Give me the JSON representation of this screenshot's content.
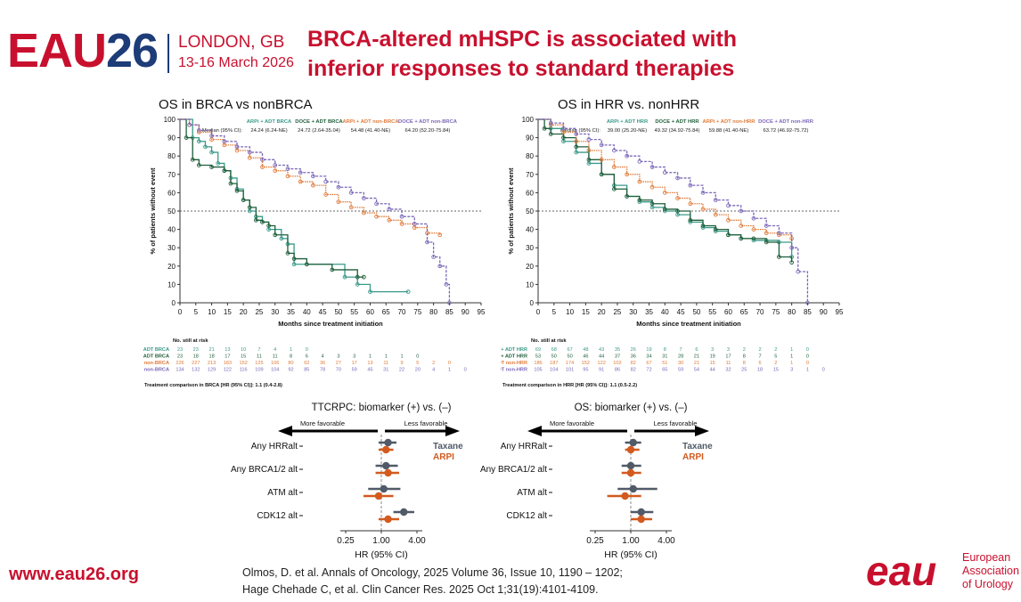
{
  "header": {
    "logo_eau": "EAU",
    "logo_num": "26",
    "city": "LONDON, GB",
    "dates": "13-16 March 2026",
    "title_line1": "BRCA-altered mHSPC is associated with",
    "title_line2": "inferior responses to standard therapies"
  },
  "colors": {
    "accent_red": "#c8102e",
    "navy": "#1d3c78",
    "arpi_brca": "#3a9a8a",
    "doce_brca": "#1f5e3a",
    "arpi_non": "#e07b39",
    "doce_non": "#7b68b8",
    "taxane": "#505a68",
    "arpi": "#d35a1e"
  },
  "chart_data": [
    {
      "type": "line",
      "title": "OS in BRCA vs nonBRCA",
      "xlabel": "Months since treatment initiation",
      "ylabel": "% of patients without event",
      "xlim": [
        0,
        95
      ],
      "ylim": [
        0,
        100
      ],
      "xticks": [
        "0",
        "5",
        "10",
        "15",
        "20",
        "25",
        "30",
        "35",
        "40",
        "45",
        "50",
        "55",
        "60",
        "65",
        "70",
        "75",
        "80",
        "85",
        "90",
        "95"
      ],
      "yticks": [
        "0",
        "10",
        "20",
        "30",
        "40",
        "50",
        "60",
        "70",
        "80",
        "90",
        "100"
      ],
      "reference_line_y": 50,
      "median_label": "Median (95% CI):",
      "series": [
        {
          "name": "ARPi + ADT BRCA",
          "median": "24.24 (6.24-NE)",
          "color_key": "arpi_brca",
          "x": [
            0,
            4,
            6,
            8,
            10,
            12,
            14,
            16,
            18,
            20,
            22,
            24,
            26,
            28,
            32,
            34,
            36,
            40,
            52,
            56,
            60,
            72
          ],
          "y": [
            100,
            90,
            88,
            85,
            82,
            76,
            72,
            68,
            62,
            56,
            50,
            47,
            44,
            40,
            35,
            32,
            21,
            21,
            14,
            10,
            6,
            6
          ]
        },
        {
          "name": "DOCE + ADT BRCA",
          "median": "24.72 (2.64-35.04)",
          "color_key": "doce_brca",
          "x": [
            0,
            2,
            4,
            6,
            10,
            14,
            16,
            18,
            20,
            22,
            24,
            26,
            28,
            30,
            34,
            36,
            40,
            48,
            56,
            58
          ],
          "y": [
            100,
            90,
            78,
            75,
            74,
            72,
            65,
            61,
            56,
            52,
            45,
            44,
            42,
            37,
            27,
            24,
            21,
            18,
            14,
            14
          ]
        },
        {
          "name": "ARPi + ADT non-BRCA",
          "median": "54.48 (41.40-NE)",
          "color_key": "arpi_non",
          "x": [
            0,
            3,
            6,
            10,
            14,
            18,
            22,
            26,
            30,
            34,
            38,
            42,
            46,
            50,
            54,
            58,
            62,
            66,
            70,
            74,
            78,
            82
          ],
          "y": [
            100,
            97,
            93,
            89,
            86,
            83,
            79,
            74,
            72,
            69,
            66,
            64,
            59,
            55,
            52,
            49,
            47,
            45,
            43,
            41,
            38,
            37
          ]
        },
        {
          "name": "DOCE + ADT non-BRCA",
          "median": "64.20 (52.20-75.84)",
          "color_key": "doce_non",
          "x": [
            0,
            3,
            6,
            10,
            14,
            18,
            22,
            26,
            30,
            34,
            38,
            42,
            46,
            50,
            54,
            58,
            62,
            66,
            70,
            74,
            78,
            80,
            82,
            84,
            85
          ],
          "y": [
            100,
            97,
            94,
            91,
            88,
            85,
            82,
            78,
            75,
            73,
            71,
            69,
            66,
            63,
            60,
            57,
            54,
            51,
            47,
            43,
            33,
            25,
            20,
            10,
            0
          ]
        }
      ],
      "risk_table": {
        "header": "No. still at risk",
        "rows": [
          {
            "label": "ARPi + ADT BRCA",
            "color_key": "arpi_brca",
            "values": [
              "23",
              "23",
              "21",
              "13",
              "10",
              "7",
              "4",
              "1",
              "0"
            ]
          },
          {
            "label": "DOCE + ADT BRCA",
            "color_key": "doce_brca",
            "values": [
              "23",
              "18",
              "18",
              "17",
              "15",
              "11",
              "11",
              "8",
              "6",
              "4",
              "3",
              "3",
              "1",
              "1",
              "1",
              "0"
            ]
          },
          {
            "label": "ARPi + ADT non-BRCA",
            "color_key": "arpi_non",
            "values": [
              "226",
              "227",
              "213",
              "183",
              "152",
              "125",
              "106",
              "80",
              "62",
              "36",
              "27",
              "17",
              "13",
              "11",
              "9",
              "5",
              "2",
              "0"
            ]
          },
          {
            "label": "DOCE + ADT non-BRCA",
            "color_key": "doce_non",
            "values": [
              "134",
              "132",
              "129",
              "122",
              "116",
              "109",
              "104",
              "92",
              "85",
              "78",
              "70",
              "59",
              "45",
              "31",
              "22",
              "20",
              "4",
              "1",
              "0"
            ]
          }
        ],
        "notes": [
          "Treatment comparison in BRCA [HR (95% CI)]: 1.1 (0.4-2.8)",
          "Treatment comparison in non-BRCA [HR (95% CI)]: 1.1 (0.7-1.7)"
        ]
      }
    },
    {
      "type": "line",
      "title": "OS in HRR vs. nonHRR",
      "xlabel": "Months since treatment initiation",
      "ylabel": "% of patients without event",
      "xlim": [
        0,
        95
      ],
      "ylim": [
        0,
        100
      ],
      "xticks": [
        "0",
        "5",
        "10",
        "15",
        "20",
        "25",
        "30",
        "35",
        "40",
        "45",
        "50",
        "55",
        "60",
        "65",
        "70",
        "75",
        "80",
        "85",
        "90",
        "95"
      ],
      "yticks": [
        "0",
        "10",
        "20",
        "30",
        "40",
        "50",
        "60",
        "70",
        "80",
        "90",
        "100"
      ],
      "reference_line_y": 50,
      "median_label": "Median (95% CI):",
      "series": [
        {
          "name": "ARPi + ADT HRR",
          "median": "39.00 (25.20-NE)",
          "color_key": "arpi_brca",
          "x": [
            0,
            4,
            8,
            12,
            16,
            20,
            24,
            28,
            32,
            36,
            40,
            44,
            48,
            52,
            56,
            60,
            64,
            68,
            72,
            76,
            80
          ],
          "y": [
            100,
            95,
            88,
            82,
            76,
            70,
            64,
            58,
            55,
            52,
            50,
            48,
            44,
            41,
            39,
            37,
            35,
            34,
            34,
            33,
            25
          ]
        },
        {
          "name": "DOCE + ADT HRR",
          "median": "49.32 (34.92-75.84)",
          "color_key": "doce_brca",
          "x": [
            0,
            2,
            4,
            8,
            12,
            16,
            20,
            24,
            28,
            32,
            36,
            40,
            44,
            48,
            52,
            56,
            60,
            64,
            68,
            72,
            76,
            80
          ],
          "y": [
            100,
            95,
            92,
            90,
            85,
            78,
            70,
            62,
            58,
            56,
            54,
            51,
            50,
            45,
            42,
            40,
            37,
            35,
            35,
            33,
            25,
            22
          ]
        },
        {
          "name": "ARPi + ADT non-HRR",
          "median": "59.88 (41.40-NE)",
          "color_key": "arpi_non",
          "x": [
            0,
            4,
            8,
            12,
            16,
            20,
            24,
            28,
            32,
            36,
            40,
            44,
            48,
            52,
            56,
            60,
            64,
            68,
            72,
            76,
            80
          ],
          "y": [
            100,
            97,
            93,
            88,
            83,
            78,
            74,
            70,
            66,
            63,
            60,
            57,
            54,
            51,
            48,
            45,
            42,
            40,
            38,
            37,
            35
          ]
        },
        {
          "name": "DOCE + ADT non-HRR",
          "median": "63.72 (46.92-75.72)",
          "color_key": "doce_non",
          "x": [
            0,
            4,
            8,
            12,
            16,
            20,
            24,
            28,
            32,
            36,
            40,
            44,
            48,
            52,
            56,
            60,
            64,
            68,
            72,
            76,
            80,
            82,
            85
          ],
          "y": [
            100,
            98,
            95,
            92,
            89,
            86,
            83,
            80,
            77,
            74,
            71,
            68,
            64,
            60,
            56,
            53,
            50,
            46,
            42,
            38,
            30,
            17,
            0
          ]
        }
      ],
      "risk_table": {
        "header": "No. still at risk",
        "rows": [
          {
            "label": "ARPi + ADT HRR",
            "color_key": "arpi_brca",
            "values": [
              "69",
              "68",
              "67",
              "48",
              "43",
              "35",
              "26",
              "19",
              "8",
              "7",
              "6",
              "3",
              "3",
              "2",
              "2",
              "2",
              "1",
              "0"
            ]
          },
          {
            "label": "DOCE + ADT HRR",
            "color_key": "doce_brca",
            "values": [
              "53",
              "50",
              "50",
              "46",
              "44",
              "37",
              "36",
              "34",
              "31",
              "28",
              "21",
              "19",
              "17",
              "8",
              "7",
              "5",
              "1",
              "0"
            ]
          },
          {
            "label": "ARPi + ADT non-HRR",
            "color_key": "arpi_non",
            "values": [
              "186",
              "187",
              "174",
              "152",
              "122",
              "102",
              "82",
              "67",
              "51",
              "30",
              "21",
              "15",
              "11",
              "8",
              "6",
              "2",
              "1",
              "0"
            ]
          },
          {
            "label": "DOCE + ADT non-HRR",
            "color_key": "doce_non",
            "values": [
              "105",
              "104",
              "101",
              "95",
              "91",
              "86",
              "82",
              "72",
              "65",
              "59",
              "54",
              "44",
              "32",
              "25",
              "18",
              "15",
              "3",
              "1",
              "0"
            ]
          }
        ],
        "notes": [
          "Treatment comparison in HRR [HR (95% CI)]: 1.1 (0.5-2.2)",
          "Treatment comparison in non-HRR [HR (95% CI)]: 1.1 (0.7-1.6)"
        ]
      }
    },
    {
      "type": "scatter",
      "subtype": "forest",
      "title": "TTCRPC: biomarker (+) vs. (–)",
      "xlabel": "HR (95% CI)",
      "x_scale": "log",
      "xticks": [
        "0.25",
        "1.00",
        "4.00"
      ],
      "arrow_left": "More favorable",
      "arrow_right": "Less favorable",
      "categories": [
        "Any HRRalt",
        "Any BRCA1/2 alt",
        "ATM alt",
        "CDK12 alt"
      ],
      "series": [
        {
          "name": "Taxane",
          "color_key": "taxane",
          "hr": [
            1.3,
            1.2,
            1.1,
            2.4
          ],
          "lo": [
            0.9,
            0.8,
            0.6,
            1.6
          ],
          "hi": [
            1.8,
            1.9,
            2.1,
            3.6
          ]
        },
        {
          "name": "ARPI",
          "color_key": "arpi",
          "hr": [
            1.2,
            1.3,
            0.9,
            1.3
          ],
          "lo": [
            0.9,
            0.8,
            0.5,
            0.9
          ],
          "hi": [
            1.6,
            2.0,
            1.6,
            2.0
          ]
        }
      ]
    },
    {
      "type": "scatter",
      "subtype": "forest",
      "title": "OS: biomarker (+) vs. (–)",
      "xlabel": "HR (95% CI)",
      "x_scale": "log",
      "xticks": [
        "0.25",
        "1.00",
        "4.00"
      ],
      "arrow_left": "More favorable",
      "arrow_right": "Less favorable",
      "categories": [
        "Any HRRalt",
        "Any BRCA1/2 alt",
        "ATM alt",
        "CDK12 alt"
      ],
      "series": [
        {
          "name": "Taxane",
          "color_key": "taxane",
          "hr": [
            1.1,
            1.0,
            1.1,
            1.5
          ],
          "lo": [
            0.8,
            0.7,
            0.6,
            1.0
          ],
          "hi": [
            1.5,
            1.5,
            2.8,
            2.4
          ]
        },
        {
          "name": "ARPI",
          "color_key": "arpi",
          "hr": [
            1.0,
            1.0,
            0.8,
            1.5
          ],
          "lo": [
            0.8,
            0.7,
            0.4,
            1.0
          ],
          "hi": [
            1.4,
            1.5,
            1.5,
            2.3
          ]
        }
      ]
    }
  ],
  "footer": {
    "url": "www.eau26.org",
    "ref1": "Olmos, D. et al. Annals of Oncology, 2025 Volume 36, Issue 10, 1190 – 1202;",
    "ref2": "Hage Chehade C, et al. Clin Cancer Res. 2025 Oct 1;31(19):4101-4109.",
    "org_logo": "eau",
    "org_line1": "European",
    "org_line2": "Association",
    "org_line3": "of Urology"
  }
}
